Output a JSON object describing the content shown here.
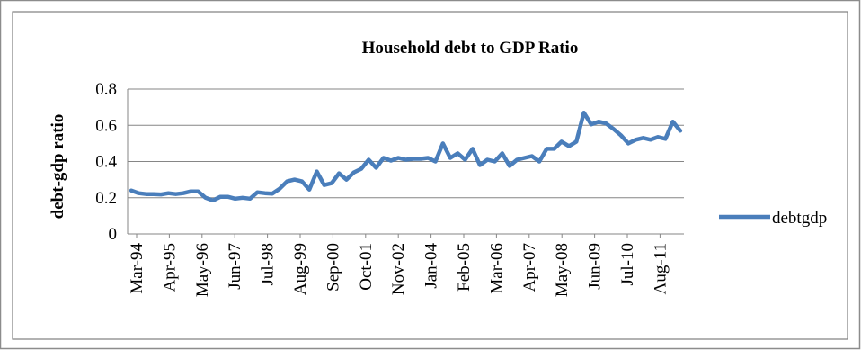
{
  "chart_data": {
    "type": "line",
    "title": "Household debt to GDP Ratio",
    "xlabel": "",
    "ylabel": "debt-gdp ratio",
    "ylim": [
      0,
      0.8
    ],
    "y_ticks": [
      "0",
      "0.2",
      "0.4",
      "0.6",
      "0.8"
    ],
    "y_tick_values": [
      0,
      0.2,
      0.4,
      0.6,
      0.8
    ],
    "grid": true,
    "legend_position": "right",
    "x_tick_labels": [
      "Mar-94",
      "Apr-95",
      "May-96",
      "Jun-97",
      "Jul-98",
      "Aug-99",
      "Sep-00",
      "Oct-01",
      "Nov-02",
      "Jan-04",
      "Feb-05",
      "Mar-06",
      "Apr-07",
      "May-08",
      "Jun-09",
      "Jul-10",
      "Aug-11"
    ],
    "series": [
      {
        "name": "debtgdp",
        "color": "#4a7ebb",
        "values": [
          0.24,
          0.225,
          0.22,
          0.22,
          0.218,
          0.225,
          0.22,
          0.225,
          0.235,
          0.235,
          0.2,
          0.185,
          0.205,
          0.205,
          0.195,
          0.2,
          0.195,
          0.23,
          0.225,
          0.222,
          0.25,
          0.29,
          0.3,
          0.29,
          0.245,
          0.345,
          0.27,
          0.28,
          0.335,
          0.3,
          0.34,
          0.36,
          0.41,
          0.365,
          0.42,
          0.405,
          0.42,
          0.41,
          0.415,
          0.415,
          0.42,
          0.4,
          0.5,
          0.42,
          0.445,
          0.41,
          0.47,
          0.38,
          0.41,
          0.4,
          0.445,
          0.375,
          0.41,
          0.42,
          0.43,
          0.4,
          0.47,
          0.47,
          0.51,
          0.485,
          0.51,
          0.67,
          0.605,
          0.62,
          0.61,
          0.58,
          0.545,
          0.5,
          0.52,
          0.53,
          0.52,
          0.535,
          0.525,
          0.62,
          0.57
        ]
      }
    ]
  }
}
